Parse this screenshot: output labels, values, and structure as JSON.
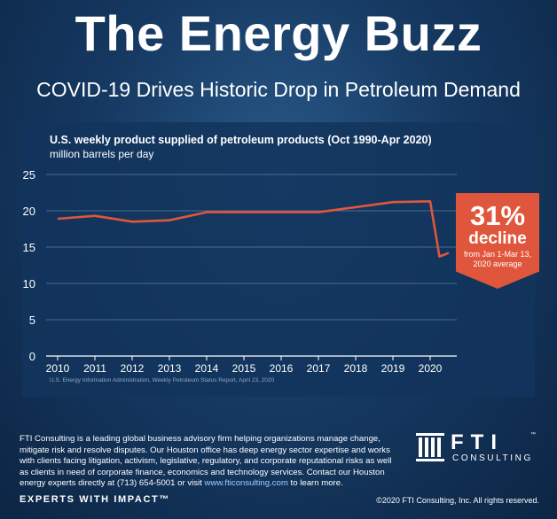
{
  "header": {
    "title": "The Energy Buzz",
    "subtitle": "COVID-19 Drives Historic Drop in Petroleum Demand"
  },
  "chart_data": {
    "type": "line",
    "title": "U.S. weekly product supplied of petroleum products (Oct 1990-Apr 2020)",
    "ylabel": "million barrels per day",
    "xlabel": "",
    "x": [
      2010.0,
      2011.0,
      2012.0,
      2013.0,
      2014.0,
      2015.0,
      2016.0,
      2017.0,
      2018.0,
      2019.0,
      2020.0,
      2020.25,
      2020.5
    ],
    "series": [
      {
        "name": "",
        "values": [
          18.9,
          19.3,
          18.5,
          18.7,
          19.8,
          19.8,
          19.8,
          19.8,
          20.5,
          21.2,
          21.3,
          13.7,
          14.2
        ]
      }
    ],
    "x_ticks": [
      "2010",
      "2011",
      "2012",
      "2013",
      "2014",
      "2015",
      "2016",
      "2017",
      "2018",
      "2019",
      "2020"
    ],
    "y_ticks": [
      "0",
      "5",
      "10",
      "15",
      "20",
      "25"
    ],
    "xlim": [
      2010,
      2020.5
    ],
    "ylim": [
      0,
      25
    ],
    "grid": "horizontal",
    "line_color": "#e0563c",
    "source": "U.S. Energy Information Administration, Weekly Petroleum Status Report, April 23, 2020",
    "callout": {
      "percent": "31%",
      "label": "decline",
      "note": "from Jan 1-Mar 13, 2020 average",
      "color": "#e0563c"
    }
  },
  "footer": {
    "about": "FTI Consulting is a leading global business advisory firm helping organizations manage change, mitigate risk and resolve disputes. Our Houston office has deep energy sector expertise and works with clients facing litigation, activism, legislative, regulatory, and corporate reputational risks as well as clients in need of corporate finance, economics and technology services. Contact our Houston energy experts directly at (713) 654-5001 or visit ",
    "link": "www.fticonsulting.com",
    "about_tail": " to learn more.",
    "logo_word": "FTI",
    "logo_tm": "™",
    "logo_sub": "CONSULTING",
    "tagline": "EXPERTS WITH IMPACT™",
    "copyright": "©2020 FTI Consulting, Inc. All rights reserved."
  }
}
